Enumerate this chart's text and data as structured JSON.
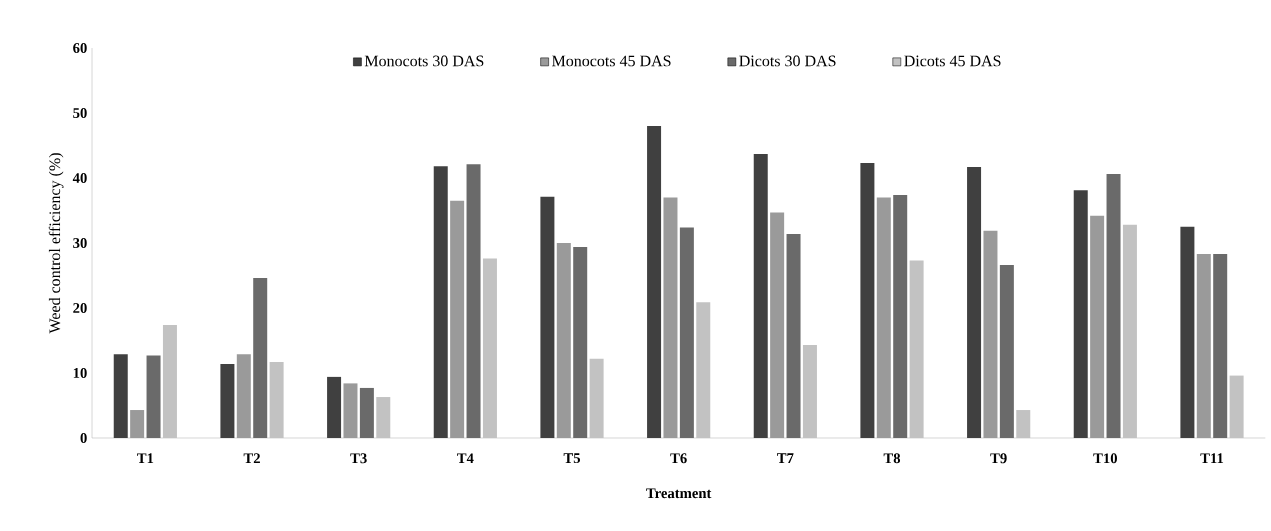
{
  "chart_data": {
    "type": "bar",
    "xlabel": "Treatment",
    "ylabel": "Weed control efficiency (%)",
    "categories": [
      "T1",
      "T2",
      "T3",
      "T4",
      "T5",
      "T6",
      "T7",
      "T8",
      "T9",
      "T10",
      "T11"
    ],
    "series": [
      {
        "name": "Monocots 30 DAS",
        "color": "#404040",
        "values": [
          12.9,
          11.4,
          9.4,
          41.8,
          37.1,
          48.0,
          43.7,
          42.3,
          41.7,
          38.1,
          32.5
        ]
      },
      {
        "name": "Monocots 45 DAS",
        "color": "#9a9a9a",
        "values": [
          4.3,
          12.9,
          8.4,
          36.5,
          30.0,
          37.0,
          34.7,
          37.0,
          31.9,
          34.2,
          28.3
        ]
      },
      {
        "name": "Dicots 30 DAS",
        "color": "#6a6a6a",
        "values": [
          12.7,
          24.6,
          7.7,
          42.1,
          29.4,
          32.4,
          31.4,
          37.4,
          26.6,
          40.6,
          28.3
        ]
      },
      {
        "name": "Dicots 45 DAS",
        "color": "#c2c2c2",
        "values": [
          17.4,
          11.7,
          6.3,
          27.6,
          12.2,
          20.9,
          14.3,
          27.3,
          4.3,
          32.8,
          9.6
        ]
      }
    ],
    "ylim": [
      0,
      60
    ],
    "yticks": [
      0,
      10,
      20,
      30,
      40,
      50,
      60
    ],
    "grid": false,
    "legend": "top"
  }
}
